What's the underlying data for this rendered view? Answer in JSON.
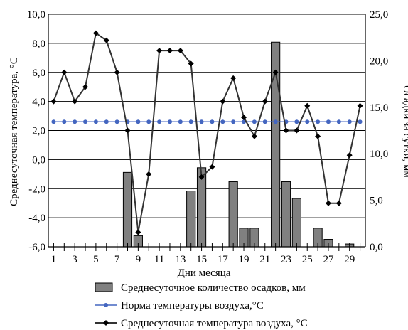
{
  "chart_data": {
    "type": "bar+line",
    "xlabel": "Дни месяца",
    "ylabel_left": "Среднесуточная температура, °С",
    "ylabel_right": "Осадки за сутки, мм",
    "x": [
      1,
      2,
      3,
      4,
      5,
      6,
      7,
      8,
      9,
      10,
      11,
      12,
      13,
      14,
      15,
      16,
      17,
      18,
      19,
      20,
      21,
      22,
      23,
      24,
      25,
      26,
      27,
      28,
      29,
      30
    ],
    "x_tick_labels": [
      "1",
      "3",
      "5",
      "7",
      "9",
      "11",
      "13",
      "15",
      "17",
      "19",
      "21",
      "23",
      "25",
      "27",
      "29"
    ],
    "y_left_ticks": [
      "-6,0",
      "-4,0",
      "-2,0",
      "0,0",
      "2,0",
      "4,0",
      "6,0",
      "8,0",
      "10,0"
    ],
    "y_right_ticks": [
      "0,0",
      "5,0",
      "10,0",
      "15,0",
      "20,0",
      "25,0"
    ],
    "ylim_left": [
      -6,
      10
    ],
    "ylim_right": [
      0,
      25
    ],
    "grid": true,
    "legend_position": "bottom",
    "series": [
      {
        "name": "Среднесуточное количество осадков, мм",
        "kind": "bar",
        "axis": "right",
        "color": "#808080",
        "values": [
          0,
          0,
          0,
          0,
          0,
          0,
          0,
          8.0,
          1.2,
          0,
          0,
          0,
          0,
          6.0,
          8.5,
          0,
          0,
          7.0,
          2.0,
          2.0,
          0,
          22.0,
          7.0,
          5.2,
          0,
          2.0,
          0.8,
          0,
          0.3,
          0
        ]
      },
      {
        "name": "Норма температуры воздуха,°С",
        "kind": "line",
        "axis": "left",
        "color": "#4466c0",
        "marker": "circle",
        "values": [
          2.6,
          2.6,
          2.6,
          2.6,
          2.6,
          2.6,
          2.6,
          2.6,
          2.6,
          2.6,
          2.6,
          2.6,
          2.6,
          2.6,
          2.6,
          2.6,
          2.6,
          2.6,
          2.6,
          2.6,
          2.6,
          2.6,
          2.6,
          2.6,
          2.6,
          2.6,
          2.6,
          2.6,
          2.6,
          2.6
        ]
      },
      {
        "name": "Среднесуточная температура воздуха, °С",
        "kind": "line",
        "axis": "left",
        "color": "#333333",
        "marker": "diamond",
        "values": [
          4.0,
          6.0,
          4.0,
          5.0,
          8.7,
          8.2,
          6.0,
          2.0,
          -5.0,
          -1.0,
          7.5,
          7.5,
          7.5,
          6.6,
          -1.2,
          -0.5,
          4.0,
          5.6,
          2.9,
          1.6,
          4.0,
          6.0,
          2.0,
          2.0,
          3.7,
          1.6,
          -3.0,
          -3.0,
          0.3,
          3.7
        ]
      }
    ]
  }
}
